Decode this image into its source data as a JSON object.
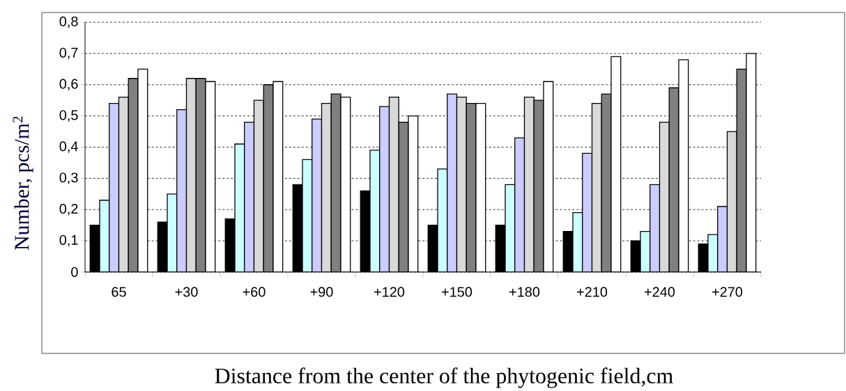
{
  "chart_data": {
    "type": "bar",
    "xlabel": "Distance from the center of the phytogenic field,cm",
    "ylabel": "Number, pcs/m$^{2}$",
    "categories": [
      "65",
      "+30",
      "+60",
      "+90",
      "+120",
      "+150",
      "+180",
      "+210",
      "+240",
      "+270"
    ],
    "series": [
      {
        "color": "#000000",
        "values": [
          0.15,
          0.16,
          0.17,
          0.28,
          0.26,
          0.15,
          0.15,
          0.13,
          0.1,
          0.09
        ]
      },
      {
        "color": "#ccffff",
        "values": [
          0.23,
          0.25,
          0.41,
          0.36,
          0.39,
          0.33,
          0.28,
          0.19,
          0.13,
          0.12
        ]
      },
      {
        "color": "#ccccff",
        "values": [
          0.54,
          0.52,
          0.48,
          0.49,
          0.53,
          0.57,
          0.43,
          0.38,
          0.28,
          0.21
        ]
      },
      {
        "color": "#d9d9d9",
        "values": [
          0.56,
          0.62,
          0.55,
          0.54,
          0.56,
          0.56,
          0.56,
          0.54,
          0.48,
          0.45
        ]
      },
      {
        "color": "#808080",
        "values": [
          0.62,
          0.62,
          0.6,
          0.57,
          0.48,
          0.54,
          0.55,
          0.57,
          0.59,
          0.65
        ]
      },
      {
        "color": "#ffffff",
        "values": [
          0.65,
          0.61,
          0.61,
          0.56,
          0.5,
          0.54,
          0.61,
          0.69,
          0.68,
          0.7
        ]
      }
    ],
    "ylim": [
      0,
      0.8
    ],
    "yticks": [
      {
        "value": 0,
        "label": "0"
      },
      {
        "value": 0.1,
        "label": "0,1"
      },
      {
        "value": 0.2,
        "label": "0,2"
      },
      {
        "value": 0.3,
        "label": "0,3"
      },
      {
        "value": 0.4,
        "label": "0,4"
      },
      {
        "value": 0.5,
        "label": "0,5"
      },
      {
        "value": 0.6,
        "label": "0,6"
      },
      {
        "value": 0.7,
        "label": "0,7"
      },
      {
        "value": 0.8,
        "label": "0,8"
      }
    ],
    "grid": "y"
  }
}
